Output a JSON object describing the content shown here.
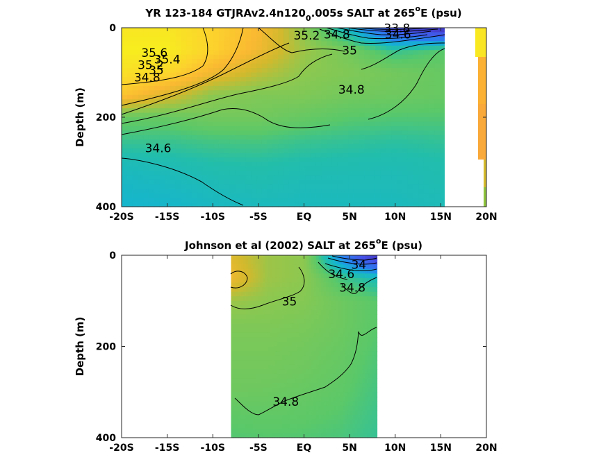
{
  "chart_data": [
    {
      "type": "contour",
      "title_parts": [
        "YR 123-184 GTJRAv2.4n120",
        "0",
        ".005s SALT at 265",
        "o",
        "E (psu)"
      ],
      "ylabel": "Depth (m)",
      "xticks": [
        "-20S",
        "-15S",
        "-10S",
        "-5S",
        "EQ",
        "5N",
        "10N",
        "15N",
        "20N"
      ],
      "xlim": [
        -20,
        20
      ],
      "yticks": [
        "0",
        "200",
        "400"
      ],
      "ylim": [
        0,
        400
      ],
      "yreversed": true,
      "data_extent_lat": [
        -20,
        15.5
      ],
      "side_column": {
        "lat": [
          19,
          20
        ],
        "note": "narrow sliver of data near 19-20N"
      },
      "salinity_field": {
        "lat": [
          -20,
          -15,
          -10,
          -5,
          0,
          5,
          10,
          15.5
        ],
        "depth": [
          0,
          50,
          100,
          150,
          200,
          250,
          300,
          350,
          400
        ],
        "values": [
          [
            35.8,
            35.8,
            35.6,
            35.4,
            35.0,
            34.5,
            33.9,
            33.7
          ],
          [
            35.85,
            35.85,
            35.6,
            35.35,
            35.05,
            34.9,
            34.7,
            34.8
          ],
          [
            35.75,
            35.65,
            35.35,
            35.15,
            35.0,
            34.95,
            34.9,
            34.85
          ],
          [
            35.5,
            35.25,
            35.0,
            34.95,
            34.95,
            34.9,
            34.88,
            34.85
          ],
          [
            34.85,
            34.85,
            34.9,
            34.9,
            34.85,
            34.8,
            34.78,
            34.78
          ],
          [
            34.72,
            34.72,
            34.75,
            34.76,
            34.72,
            34.7,
            34.68,
            34.7
          ],
          [
            34.6,
            34.62,
            34.65,
            34.66,
            34.64,
            34.63,
            34.62,
            34.64
          ],
          [
            34.55,
            34.57,
            34.6,
            34.62,
            34.6,
            34.6,
            34.6,
            34.62
          ],
          [
            34.52,
            34.53,
            34.56,
            34.58,
            34.58,
            34.58,
            34.58,
            34.6
          ]
        ]
      },
      "contour_labels": [
        {
          "text": "35.6",
          "lat": -16.4,
          "depth": 65
        },
        {
          "text": "35.4",
          "lat": -15.0,
          "depth": 80
        },
        {
          "text": "35.2",
          "lat": -16.8,
          "depth": 92
        },
        {
          "text": "35",
          "lat": -16.2,
          "depth": 104
        },
        {
          "text": "34.8",
          "lat": -17.2,
          "depth": 120
        },
        {
          "text": "35.2",
          "lat": 0.3,
          "depth": 26
        },
        {
          "text": "34.8",
          "lat": 3.6,
          "depth": 24
        },
        {
          "text": "35",
          "lat": 5.0,
          "depth": 60
        },
        {
          "text": "34.8",
          "lat": 5.2,
          "depth": 147
        },
        {
          "text": "34.6",
          "lat": -16.0,
          "depth": 278
        },
        {
          "text": "33.8",
          "lat": 10.2,
          "depth": 10
        },
        {
          "text": "34.6",
          "lat": 10.3,
          "depth": 24
        }
      ],
      "contour_values": [
        33.8,
        34.0,
        34.2,
        34.4,
        34.6,
        34.8,
        35.0,
        35.2,
        35.4,
        35.6
      ]
    },
    {
      "type": "contour",
      "title_parts": [
        "Johnson et al (2002) SALT at 265",
        "o",
        "E (psu)"
      ],
      "ylabel": "Depth (m)",
      "xticks": [
        "-20S",
        "-15S",
        "-10S",
        "-5S",
        "EQ",
        "5N",
        "10N",
        "15N",
        "20N"
      ],
      "xlim": [
        -20,
        20
      ],
      "yticks": [
        "0",
        "200",
        "400"
      ],
      "ylim": [
        0,
        400
      ],
      "yreversed": true,
      "data_extent_lat": [
        -8,
        8
      ],
      "salinity_field": {
        "lat": [
          -8,
          -4,
          0,
          4,
          8
        ],
        "depth": [
          0,
          50,
          100,
          150,
          200,
          250,
          300,
          350,
          400
        ],
        "values": [
          [
            35.25,
            35.05,
            35.0,
            34.3,
            33.7
          ],
          [
            35.35,
            35.05,
            35.0,
            34.75,
            34.6
          ],
          [
            35.05,
            35.0,
            34.97,
            34.88,
            34.8
          ],
          [
            34.95,
            34.95,
            34.93,
            34.88,
            34.8
          ],
          [
            34.92,
            34.92,
            34.9,
            34.86,
            34.78
          ],
          [
            34.9,
            34.9,
            34.88,
            34.84,
            34.76
          ],
          [
            34.88,
            34.87,
            34.85,
            34.82,
            34.74
          ],
          [
            34.82,
            34.83,
            34.82,
            34.79,
            34.72
          ],
          [
            34.78,
            34.79,
            34.78,
            34.76,
            34.7
          ]
        ]
      },
      "contour_labels": [
        {
          "text": "35",
          "lat": -1.6,
          "depth": 110
        },
        {
          "text": "34.6",
          "lat": 4.1,
          "depth": 50
        },
        {
          "text": "34.8",
          "lat": 5.3,
          "depth": 80
        },
        {
          "text": "34",
          "lat": 6.0,
          "depth": 30
        },
        {
          "text": "34.8",
          "lat": -2.0,
          "depth": 330
        }
      ],
      "contour_values": [
        33.8,
        34.0,
        34.2,
        34.4,
        34.6,
        34.8,
        35.0,
        35.2
      ]
    }
  ]
}
